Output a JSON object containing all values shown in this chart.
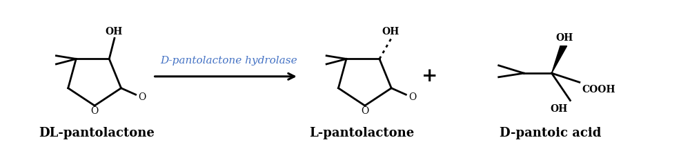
{
  "background_color": "#ffffff",
  "enzyme_label": "D-pantolactone hydrolase",
  "enzyme_color": "#4472c4",
  "compound1_label": "DL-pantolactone",
  "compound2_label": "L-pantolactone",
  "compound3_label": "D-pantoic acid",
  "label_color": "#000000",
  "label_fontsize": 13,
  "enzyme_fontsize": 11,
  "figsize": [
    10.0,
    2.16
  ],
  "dpi": 100,
  "oh_label": "OH",
  "o_label": "O",
  "cooh_label": "COOH",
  "plus_symbol": "+"
}
